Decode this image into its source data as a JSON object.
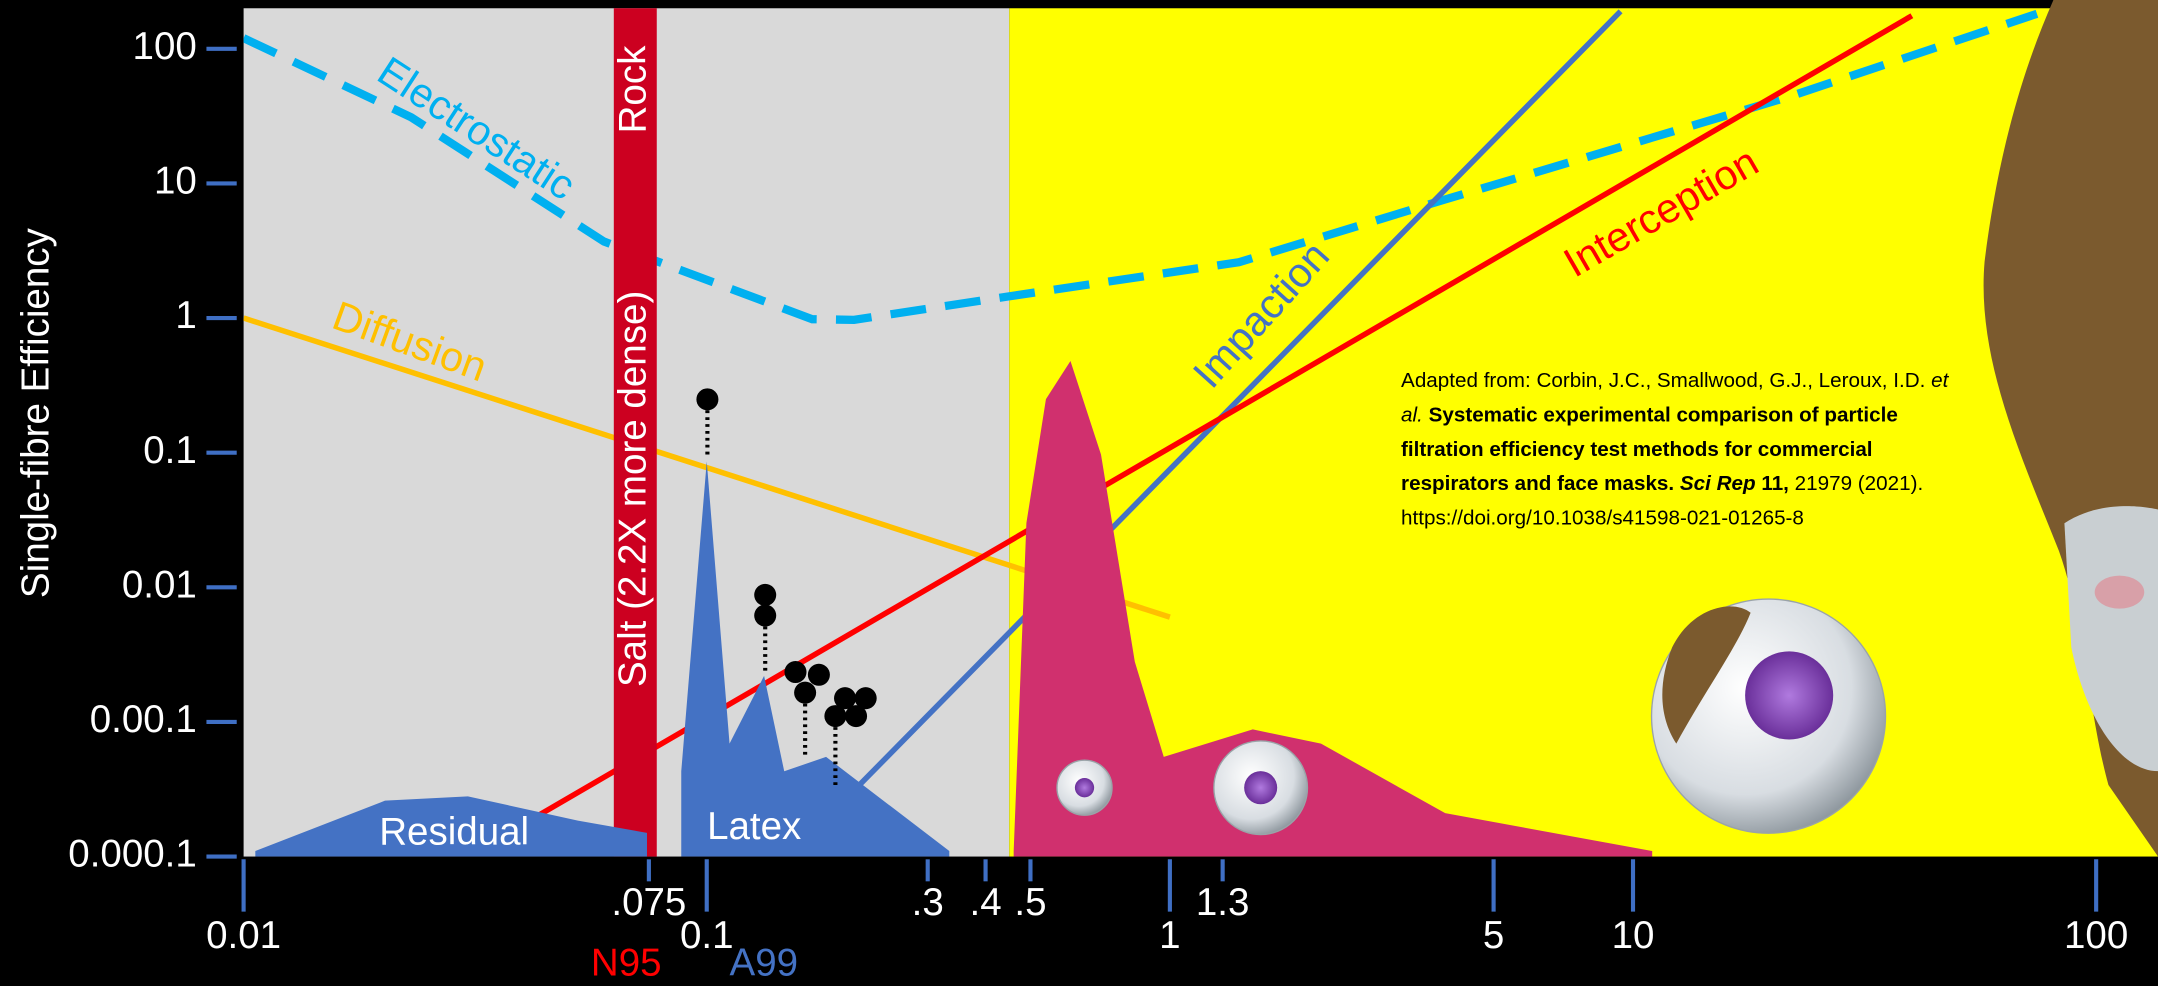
{
  "chart_data": {
    "type": "line",
    "x_scale": "log",
    "y_scale": "log",
    "ylabel": "Single-fibre Efficiency",
    "xlim": [
      0.01,
      136
    ],
    "ylim": [
      0.0001,
      200
    ],
    "xticks": [
      0.01,
      {
        "value": 0.075,
        "label": ".075"
      },
      0.1,
      {
        "value": 0.3,
        "label": ".3"
      },
      {
        "value": 0.4,
        "label": ".4"
      },
      {
        "value": 0.5,
        "label": ".5"
      },
      1,
      1.3,
      5,
      10,
      100
    ],
    "yticks": [
      {
        "value": 0.0001,
        "label": "0.000.1"
      },
      {
        "value": 0.001,
        "label": "0.00.1"
      },
      0.01,
      0.1,
      1,
      10,
      100
    ],
    "regions": [
      {
        "x": [
          0.01,
          0.45
        ],
        "color": "#d9d9d9"
      },
      {
        "x": [
          0.45,
          136
        ],
        "color": "#ffff00"
      }
    ],
    "band": {
      "x": [
        0.063,
        0.078
      ],
      "color": "#cc0020",
      "labels": [
        "Rock",
        "Salt  (2.2X more dense)"
      ]
    },
    "series": [
      {
        "name": "Electrostatic",
        "color": "#00b0f0",
        "style": "dashed",
        "x": [
          0.01,
          0.023,
          0.06,
          0.169,
          0.208,
          0.45,
          1.41,
          3.93,
          21.7,
          74.5
        ],
        "values": [
          120,
          31,
          3.7,
          0.98,
          0.97,
          1.45,
          2.6,
          7.6,
          44,
          182
        ]
      },
      {
        "name": "Diffusion",
        "color": "#ffc000",
        "style": "solid",
        "x": [
          0.01,
          1
        ],
        "values": [
          1,
          0.006
        ]
      },
      {
        "name": "Impaction",
        "color": "#4472c4",
        "style": "solid",
        "x": [
          0.2,
          9.4
        ],
        "values": [
          0.00027,
          190
        ]
      },
      {
        "name": "Interception",
        "color": "#ff0000",
        "style": "solid",
        "x": [
          0.042,
          40
        ],
        "values": [
          0.00019,
          176
        ]
      },
      {
        "name": "Residual",
        "color": "#4472c4",
        "style": "area",
        "x": [
          0.0106,
          0.0202,
          0.0305,
          0.0527,
          0.0743
        ],
        "values": [
          0.00011,
          0.00026,
          0.00028,
          0.000185,
          0.00015
        ]
      },
      {
        "name": "Latex",
        "color": "#4472c4",
        "style": "area",
        "x": [
          0.0881,
          0.1,
          0.112,
          0.133,
          0.147,
          0.181,
          0.334
        ],
        "values": [
          0.00043,
          0.086,
          0.00069,
          0.0022,
          0.00043,
          0.00055,
          0.00011
        ]
      },
      {
        "color": "#d0306e",
        "style": "area",
        "x": [
          0.46,
          0.49,
          0.54,
          0.61,
          0.71,
          0.84,
          0.97,
          1.51,
          2.12,
          3.93,
          11
        ],
        "values": [
          0.00011,
          0.03,
          0.25,
          0.48,
          0.097,
          0.0028,
          0.00055,
          0.00088,
          0.00069,
          0.00021,
          0.00011
        ]
      }
    ],
    "annotations": [
      {
        "text": "N95",
        "color": "#ff0000"
      },
      {
        "text": "A99",
        "color": "#4472c4"
      }
    ],
    "citation": [
      {
        "text": "Adapted from: Corbin, J.C., Smallwood, G.J., Leroux, I.D. ",
        "style": "normal"
      },
      {
        "text": "et al.",
        "style": "italic"
      },
      {
        "text": " Systematic experimental comparison of particle filtration efficiency test methods for commercial respirators and face masks.",
        "style": "bold"
      },
      {
        "text": " Sci Rep",
        "style": "bold-italic"
      },
      {
        "text": " 11,",
        "style": "bold"
      },
      {
        "text": " 21979 (2021). https://doi.org/10.1038/s41598-021-01265-8",
        "style": "normal"
      }
    ]
  }
}
